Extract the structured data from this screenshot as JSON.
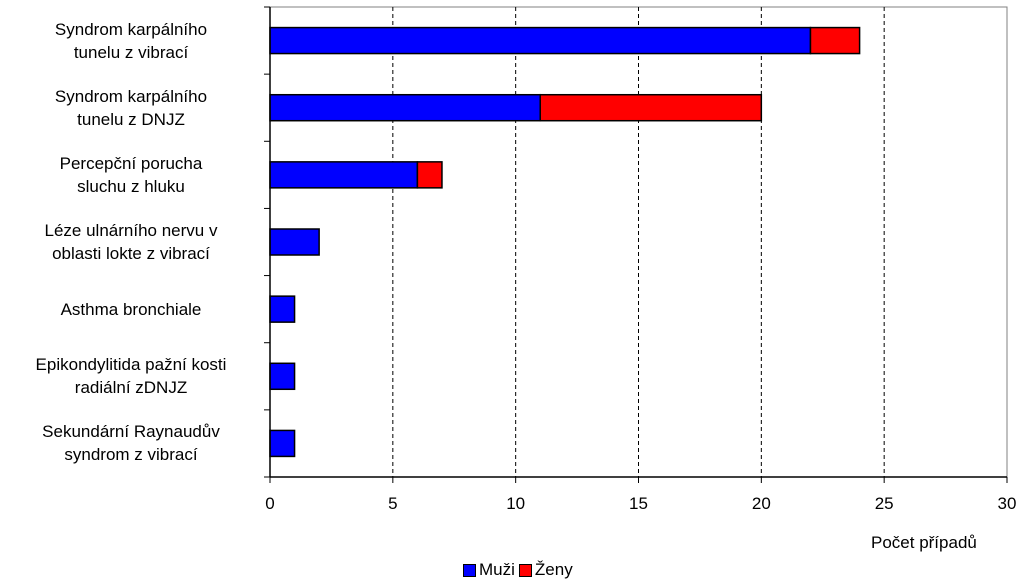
{
  "chart_data": {
    "type": "bar",
    "orientation": "horizontal",
    "stacked": true,
    "categories": [
      [
        "Syndrom karpálního",
        "tunelu z vibrací"
      ],
      [
        "Syndrom karpálního",
        "tunelu z DNJZ"
      ],
      [
        "Percepční porucha",
        "sluchu z hluku"
      ],
      [
        "Léze ulnárního nervu v",
        "oblasti lokte z vibrací"
      ],
      [
        "Asthma bronchiale"
      ],
      [
        "Epikondylitida pažní kosti",
        "radiální zDNJZ"
      ],
      [
        "Sekundární Raynaudův",
        "syndrom z vibrací"
      ]
    ],
    "series": [
      {
        "name": "Muži",
        "color": "#0000ff",
        "values": [
          22,
          11,
          6,
          2,
          1,
          1,
          1
        ]
      },
      {
        "name": "Ženy",
        "color": "#ff0000",
        "values": [
          2,
          9,
          1,
          0,
          0,
          0,
          0
        ]
      }
    ],
    "xlabel": "Počet případů",
    "xlim": [
      0,
      30
    ],
    "xticks": [
      0,
      5,
      10,
      15,
      20,
      25,
      30
    ],
    "grid": "vertical-dashed",
    "legend_position": "bottom"
  }
}
